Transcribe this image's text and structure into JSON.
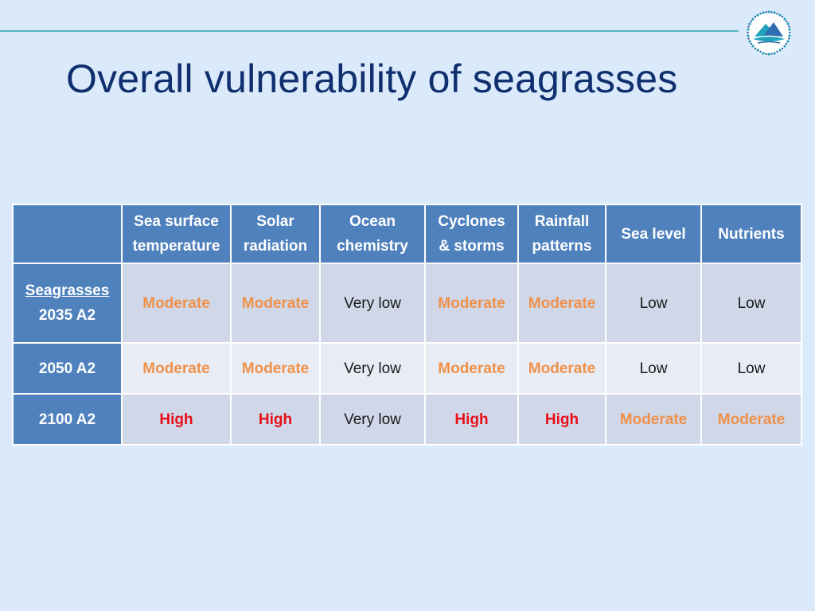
{
  "slide": {
    "title": "Overall vulnerability of seagrasses"
  },
  "colors": {
    "background": "#dbeafa",
    "header": "#4f81bd",
    "row_dark": "#cfd7e8",
    "row_light": "#e8ecf4",
    "moderate": "#f0914a",
    "high": "#e8101a",
    "rule": "#53b6c4",
    "title": "#0f2f6e"
  },
  "logo": {
    "icon": "ocean-island-logo-icon"
  },
  "table": {
    "headers": [
      {
        "line1": "",
        "line2": ""
      },
      {
        "line1": "Sea surface",
        "line2": "temperature"
      },
      {
        "line1": "Solar",
        "line2": "radiation"
      },
      {
        "line1": "Ocean",
        "line2": "chemistry"
      },
      {
        "line1": "Cyclones",
        "line2": "& storms"
      },
      {
        "line1": "Rainfall",
        "line2": "patterns"
      },
      {
        "line1": "Sea level",
        "line2": ""
      },
      {
        "line1": "Nutrients",
        "line2": ""
      }
    ],
    "rows": [
      {
        "label_link": "Seagrasses",
        "label": "2035 A2",
        "cells": [
          "Moderate",
          "Moderate",
          "Very low",
          "Moderate",
          "Moderate",
          "Low",
          "Low"
        ]
      },
      {
        "label_link": "",
        "label": "2050 A2",
        "cells": [
          "Moderate",
          "Moderate",
          "Very low",
          "Moderate",
          "Moderate",
          "Low",
          "Low"
        ]
      },
      {
        "label_link": "",
        "label": "2100 A2",
        "cells": [
          "High",
          "High",
          "Very low",
          "High",
          "High",
          "Moderate",
          "Moderate"
        ]
      }
    ]
  }
}
